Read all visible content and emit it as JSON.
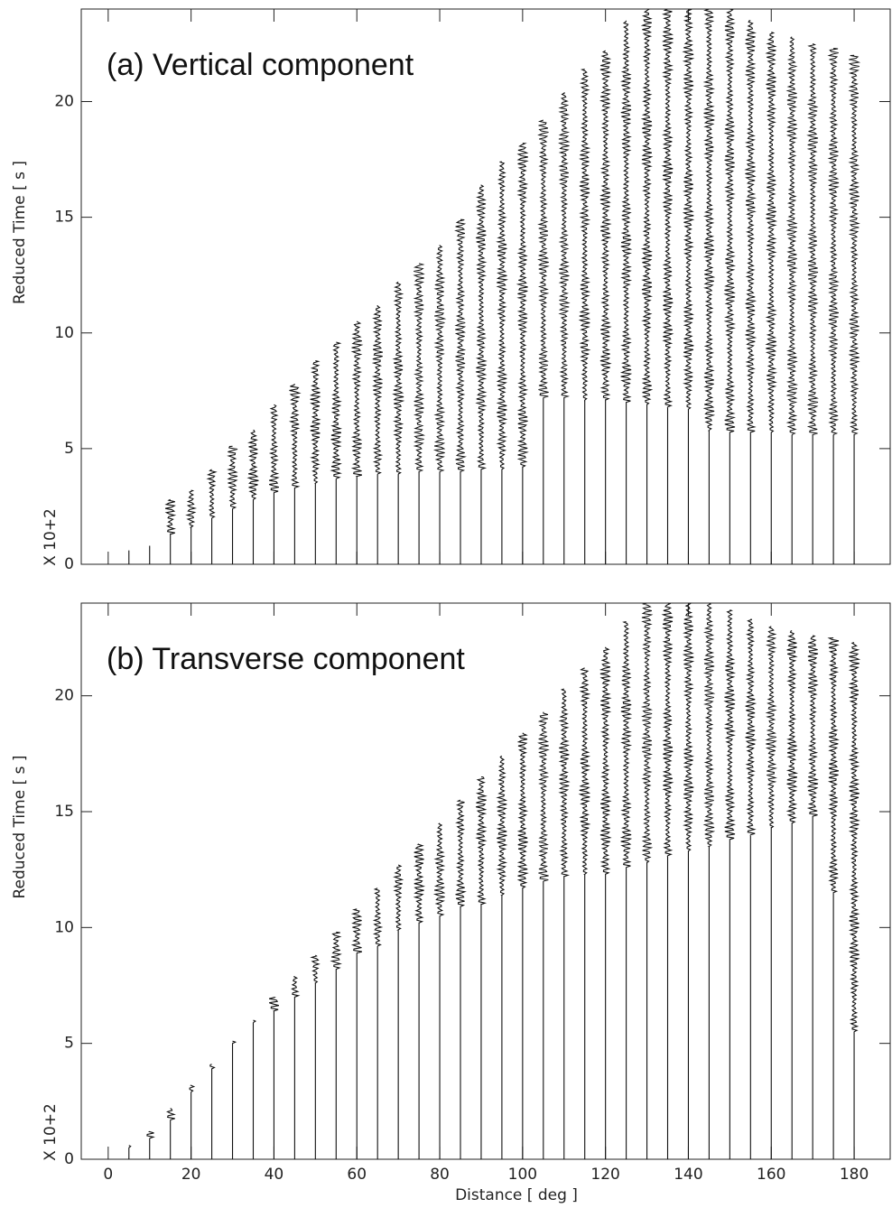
{
  "chart_data": [
    {
      "type": "record-section",
      "title": "(a) Vertical component",
      "ylabel": "Reduced Time [ s ]",
      "y_multiplier": "X 10+2",
      "x": [
        5,
        10,
        15,
        20,
        25,
        30,
        35,
        40,
        45,
        50,
        55,
        60,
        65,
        70,
        75,
        80,
        85,
        90,
        95,
        100,
        105,
        110,
        115,
        120,
        125,
        130,
        135,
        140,
        145,
        150,
        155,
        160,
        165,
        170,
        175,
        180
      ],
      "arrival": [
        0.6,
        0.8,
        1.3,
        1.6,
        2.0,
        2.4,
        2.8,
        3.1,
        3.3,
        3.5,
        3.7,
        3.8,
        3.9,
        3.9,
        4.0,
        4.0,
        4.0,
        4.1,
        4.1,
        4.2,
        7.2,
        7.2,
        7.1,
        7.1,
        7.0,
        6.9,
        6.8,
        6.7,
        5.8,
        5.7,
        5.7,
        5.7,
        5.6,
        5.6,
        5.6,
        5.6
      ],
      "end": [
        0.6,
        0.8,
        2.8,
        3.2,
        4.1,
        5.1,
        5.8,
        6.9,
        7.8,
        8.8,
        9.6,
        10.5,
        11.2,
        12.2,
        13.0,
        13.8,
        14.9,
        16.4,
        17.4,
        18.2,
        19.2,
        20.4,
        21.4,
        22.2,
        23.5,
        24,
        24,
        24,
        24,
        24,
        23.5,
        23,
        22.8,
        22.5,
        22.3,
        22
      ],
      "xlim": [
        -6.5,
        188.7
      ],
      "ylim": [
        0,
        24
      ],
      "xticks": [
        0,
        20,
        40,
        60,
        80,
        100,
        120,
        140,
        160,
        180
      ],
      "yticks": [
        0,
        5,
        10,
        15,
        20
      ],
      "show_xtick_labels": false,
      "color": "#111111"
    },
    {
      "type": "record-section",
      "title": "(b) Transverse component",
      "ylabel": "Reduced Time [ s ]",
      "y_multiplier": "X 10+2",
      "xlabel": "Distance [ deg ]",
      "x": [
        5,
        10,
        15,
        20,
        25,
        30,
        35,
        40,
        45,
        50,
        55,
        60,
        65,
        70,
        75,
        80,
        85,
        90,
        95,
        100,
        105,
        110,
        115,
        120,
        125,
        130,
        135,
        140,
        145,
        150,
        155,
        160,
        165,
        170,
        175,
        180
      ],
      "arrival": [
        0.5,
        0.9,
        1.7,
        2.9,
        3.9,
        5.0,
        5.9,
        6.4,
        7.0,
        7.6,
        8.2,
        8.9,
        9.2,
        9.9,
        10.2,
        10.5,
        10.9,
        11.0,
        11.4,
        11.7,
        12.0,
        12.2,
        12.3,
        12.3,
        12.6,
        12.8,
        13.1,
        13.3,
        13.5,
        13.8,
        14.0,
        14.3,
        14.5,
        14.8,
        11.5,
        5.5
      ],
      "end": [
        0.6,
        1.2,
        2.2,
        3.2,
        4.1,
        5.1,
        6.0,
        7.0,
        7.9,
        8.8,
        9.8,
        10.8,
        11.7,
        12.7,
        13.6,
        14.5,
        15.5,
        16.5,
        17.4,
        18.4,
        19.3,
        20.3,
        21.2,
        22.1,
        23.2,
        24,
        24,
        24,
        24,
        23.7,
        23.3,
        23,
        22.8,
        22.6,
        22.5,
        22.3
      ],
      "xlim": [
        -6.5,
        188.7
      ],
      "ylim": [
        0,
        24
      ],
      "xticks": [
        0,
        20,
        40,
        60,
        80,
        100,
        120,
        140,
        160,
        180
      ],
      "yticks": [
        0,
        5,
        10,
        15,
        20
      ],
      "show_xtick_labels": true,
      "color": "#111111"
    }
  ]
}
